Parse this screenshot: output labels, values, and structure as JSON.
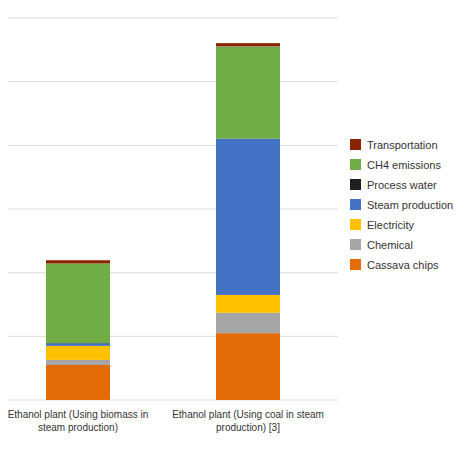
{
  "chart_data": {
    "type": "bar",
    "stacked": true,
    "categories": [
      "Ethanol plant (Using biomass in\nsteam production)",
      "Ethanol plant (Using coal in steam\nproduction) [3]"
    ],
    "series": [
      {
        "name": "Cassava chips",
        "color": "#E36C09",
        "values": [
          0.55,
          1.05
        ]
      },
      {
        "name": "Chemical",
        "color": "#A6A6A6",
        "values": [
          0.08,
          0.32
        ]
      },
      {
        "name": "Electricity",
        "color": "#FFC000",
        "values": [
          0.22,
          0.28
        ]
      },
      {
        "name": "Steam production",
        "color": "#4472C4",
        "values": [
          0.04,
          2.45
        ]
      },
      {
        "name": "Process water",
        "color": "#1F1F1F",
        "values": [
          0.005,
          0.005
        ]
      },
      {
        "name": "CH4 emissions",
        "color": "#70AD47",
        "values": [
          1.25,
          1.45
        ]
      },
      {
        "name": "Transportation",
        "color": "#8B2200",
        "values": [
          0.05,
          0.05
        ]
      }
    ],
    "ylim": [
      0,
      6
    ],
    "yticks": [
      0,
      1,
      2,
      3,
      4,
      5,
      6
    ],
    "grid": true,
    "tick_labels": "x",
    "legend": "right"
  }
}
